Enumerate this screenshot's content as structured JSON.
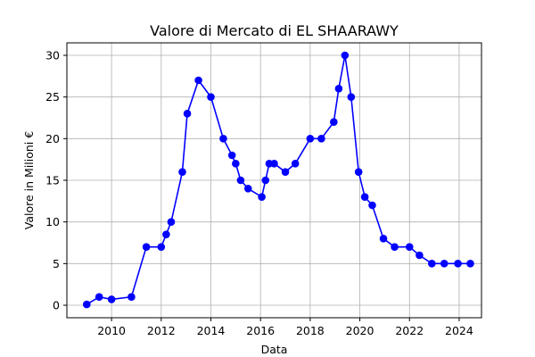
{
  "chart_data": {
    "type": "line",
    "title": "Valore di Mercato di EL SHAARAWY",
    "xlabel": "Data",
    "ylabel": "Valore in Milioni €",
    "x_tick_labels": [
      "2010",
      "2012",
      "2014",
      "2016",
      "2018",
      "2020",
      "2022",
      "2024"
    ],
    "y_tick_labels": [
      "0",
      "5",
      "10",
      "15",
      "20",
      "25",
      "30"
    ],
    "x_ticks": [
      2010,
      2012,
      2014,
      2016,
      2018,
      2020,
      2022,
      2024
    ],
    "y_ticks": [
      0,
      5,
      10,
      15,
      20,
      25,
      30
    ],
    "xlim": [
      2008.2,
      2024.9
    ],
    "ylim": [
      -1.5,
      31.5
    ],
    "grid": true,
    "color": "#0000ff",
    "series": [
      {
        "x": [
          2009.0,
          2009.5,
          2010.0,
          2010.8,
          2011.4,
          2012.0,
          2012.2,
          2012.4,
          2012.85,
          2013.05,
          2013.5,
          2014.0,
          2014.5,
          2014.85,
          2015.0,
          2015.2,
          2015.5,
          2016.05,
          2016.2,
          2016.35,
          2016.55,
          2017.0,
          2017.4,
          2018.0,
          2018.45,
          2018.95,
          2019.15,
          2019.4,
          2019.65,
          2019.95,
          2020.2,
          2020.5,
          2020.95,
          2021.4,
          2022.0,
          2022.4,
          2022.9,
          2023.4,
          2023.95,
          2024.45
        ],
        "y": [
          0.1,
          1.0,
          0.7,
          1.0,
          7.0,
          7.0,
          8.5,
          10.0,
          16.0,
          23.0,
          27.0,
          25.0,
          20.0,
          18.0,
          17.0,
          15.0,
          14.0,
          13.0,
          15.0,
          17.0,
          17.0,
          16.0,
          17.0,
          20.0,
          20.0,
          22.0,
          26.0,
          30.0,
          25.0,
          16.0,
          13.0,
          12.0,
          8.0,
          7.0,
          7.0,
          6.0,
          5.0,
          5.0,
          5.0,
          5.0
        ]
      }
    ]
  }
}
